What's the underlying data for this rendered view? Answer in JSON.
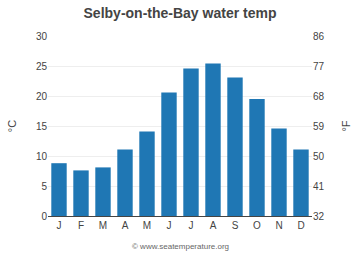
{
  "chart_data": {
    "type": "bar",
    "title": "Selby-on-the-Bay water temp",
    "categories": [
      "J",
      "F",
      "M",
      "A",
      "M",
      "J",
      "J",
      "A",
      "S",
      "O",
      "N",
      "D"
    ],
    "values": [
      8.8,
      7.6,
      8.1,
      11.1,
      14.1,
      20.6,
      24.6,
      25.4,
      23.1,
      19.5,
      14.6,
      11.1
    ],
    "ylabel": "°C",
    "y2label": "°F",
    "ylim": [
      0,
      30
    ],
    "yticks": [
      0,
      5,
      10,
      15,
      20,
      25,
      30
    ],
    "y2lim": [
      32,
      86
    ],
    "y2ticks": [
      32,
      41,
      50,
      59,
      68,
      77,
      86
    ],
    "grid": true,
    "annotations": [
      "© www.seatemperature.org"
    ]
  }
}
